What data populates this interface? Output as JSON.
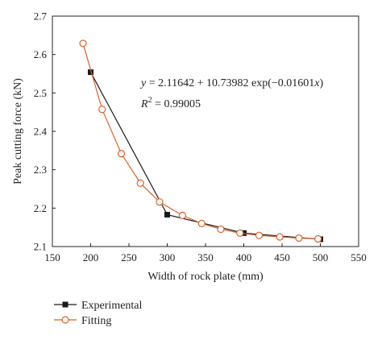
{
  "chart_data": {
    "type": "line",
    "xlabel": "Width of rock plate (mm)",
    "ylabel": "Peak cutting force (kN)",
    "xlim": [
      150,
      550
    ],
    "ylim": [
      2.1,
      2.7
    ],
    "x_ticks": [
      "150",
      "200",
      "250",
      "300",
      "350",
      "400",
      "450",
      "500",
      "550"
    ],
    "y_ticks": [
      "2.1",
      "2.2",
      "2.3",
      "2.4",
      "2.5",
      "2.6",
      "2.7"
    ],
    "equation": {
      "y_var": "y",
      "rhs_a": " = 2.11642 + 10.73982 exp(−0.01601",
      "x_var": "x",
      "rhs_b": ")",
      "r2_left": "R",
      "r2_exp": "2",
      "r2_right": " = 0.99005"
    },
    "series": [
      {
        "name": "Experimental",
        "color": "#1a1a1a",
        "marker": "filled-square",
        "x": [
          200,
          300,
          400,
          500
        ],
        "y": [
          2.554,
          2.183,
          2.135,
          2.119
        ]
      },
      {
        "name": "Fitting",
        "color": "#d9622b",
        "marker": "open-circle",
        "x": [
          190,
          215,
          240,
          265,
          290,
          320,
          345,
          370,
          395,
          420,
          447,
          472,
          497
        ],
        "y": [
          2.629,
          2.457,
          2.342,
          2.265,
          2.216,
          2.181,
          2.16,
          2.145,
          2.135,
          2.129,
          2.125,
          2.122,
          2.12
        ]
      }
    ],
    "legend_position": "bottom-left"
  }
}
